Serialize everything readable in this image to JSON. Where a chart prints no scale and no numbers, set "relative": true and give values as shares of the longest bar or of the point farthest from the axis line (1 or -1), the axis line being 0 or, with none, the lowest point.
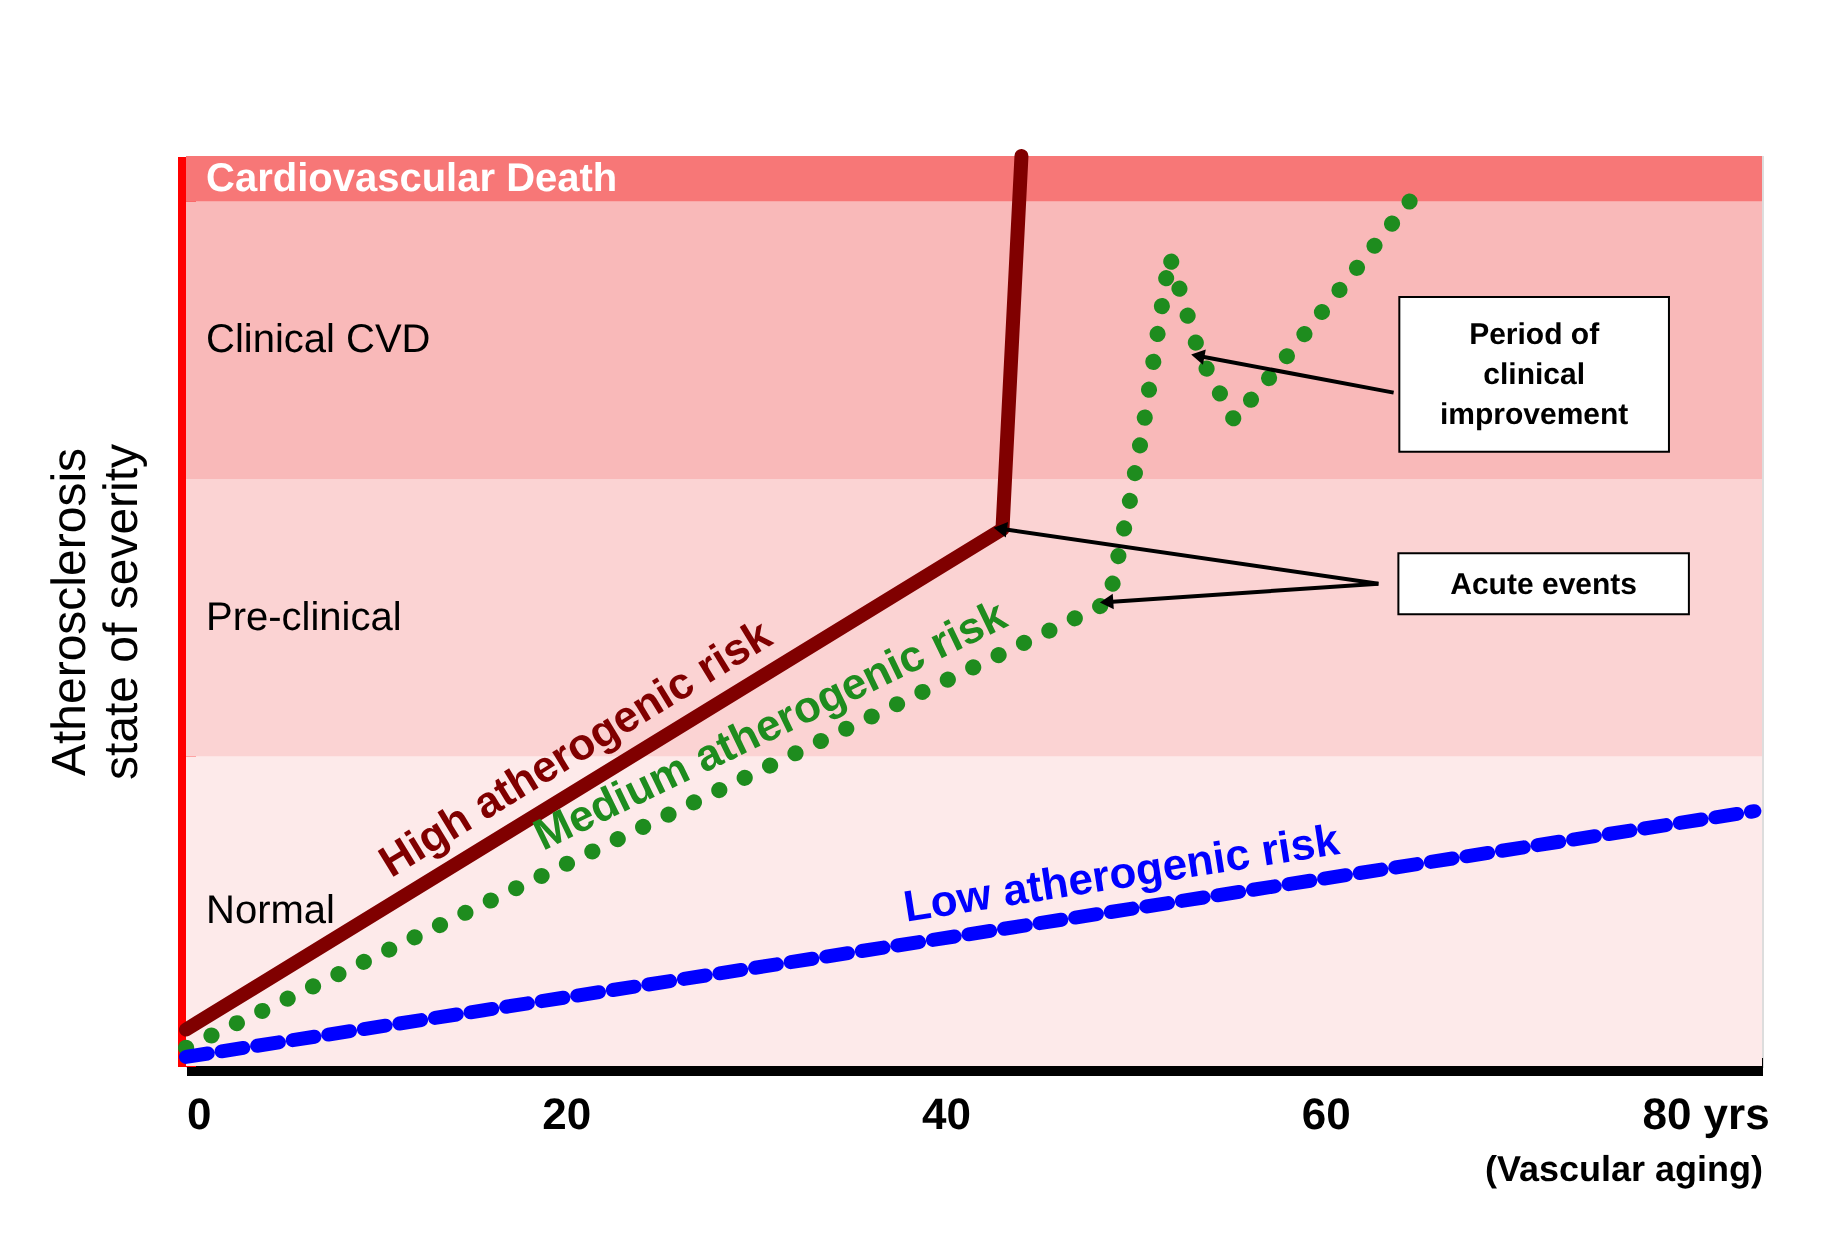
{
  "chart_data": {
    "type": "line",
    "relative": true,
    "xlabel": "(Vascular aging)",
    "ylabel": "Atherosclerosis\nstate of severity",
    "xlim": [
      0,
      83
    ],
    "xticks": [
      0,
      20,
      40,
      60,
      {
        "value": 80,
        "label": "80 yrs"
      }
    ],
    "grid": false,
    "legend": false,
    "tick_labels": "x",
    "marker": "none",
    "bands": [
      {
        "axis": "y",
        "from": 0,
        "to": 0.34,
        "label": "Normal",
        "color": "#fdeaea"
      },
      {
        "axis": "y",
        "from": 0.34,
        "to": 0.645,
        "label": "Pre-clinical",
        "color": "#fbd3d3"
      },
      {
        "axis": "y",
        "from": 0.645,
        "to": 0.95,
        "label": "Clinical CVD",
        "color": "#f9b9b9"
      },
      {
        "axis": "y",
        "from": 0.95,
        "to": 1.0,
        "label": "Cardiovascular Death",
        "color": "#f77777"
      }
    ],
    "series": [
      {
        "name": "High atherogenic risk",
        "color": "#800000",
        "line_style": "solid",
        "x": [
          0,
          43,
          44
        ],
        "values": [
          0.04,
          0.59,
          1.0
        ]
      },
      {
        "name": "Medium atherogenic risk",
        "color": "#1e8c1e",
        "line_style": "dotted",
        "x": [
          0,
          48.6,
          49.7,
          50.4,
          51.8,
          53.4,
          55.2,
          57.6,
          65.2
        ],
        "values": [
          0.02,
          0.51,
          0.62,
          0.7,
          0.89,
          0.78,
          0.71,
          0.77,
          0.97
        ]
      },
      {
        "name": "Low atherogenic risk",
        "color": "#0000ff",
        "line_style": "dashed",
        "x": [
          0,
          82.6
        ],
        "values": [
          0.01,
          0.28
        ]
      }
    ],
    "annotations": [
      "Period of\nclinical\nimprovement",
      "Acute events"
    ]
  }
}
